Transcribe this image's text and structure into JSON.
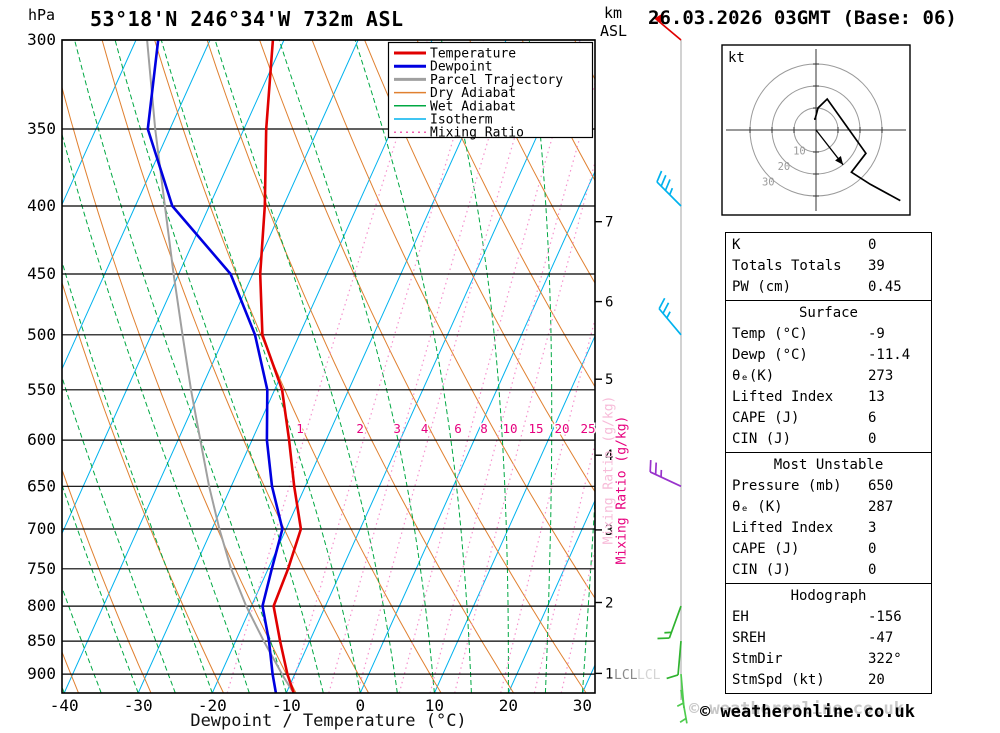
{
  "header": {
    "station_title": "53°18'N 246°34'W 732m ASL",
    "datetime_title": "26.03.2026 03GMT (Base: 06)"
  },
  "axes": {
    "pressure_unit": "hPa",
    "km_unit_line1": "km",
    "km_unit_line2": "ASL",
    "x_axis_title": "Dewpoint / Temperature (°C)",
    "mixing_ratio_axis_label": "Mixing Ratio (g/kg)",
    "lcl_label": "LCL",
    "pressure_ticks": [
      300,
      350,
      400,
      450,
      500,
      550,
      600,
      650,
      700,
      750,
      800,
      850,
      900
    ],
    "temp_ticks": [
      -40,
      -30,
      -20,
      -10,
      0,
      10,
      20,
      30
    ],
    "km_ticks": [
      {
        "km": 7,
        "p": 411
      },
      {
        "km": 6,
        "p": 472
      },
      {
        "km": 5,
        "p": 540
      },
      {
        "km": 4,
        "p": 616
      },
      {
        "km": 3,
        "p": 701
      },
      {
        "km": 2,
        "p": 795
      },
      {
        "km": 1,
        "p": 899
      }
    ]
  },
  "legend": {
    "items": [
      {
        "label": "Temperature",
        "color": "#e00000",
        "width": 3,
        "dash": ""
      },
      {
        "label": "Dewpoint",
        "color": "#0000e0",
        "width": 3,
        "dash": ""
      },
      {
        "label": "Parcel Trajectory",
        "color": "#a0a0a0",
        "width": 3,
        "dash": ""
      },
      {
        "label": "Dry Adiabat",
        "color": "#e08030",
        "width": 1.5,
        "dash": ""
      },
      {
        "label": "Wet Adiabat",
        "color": "#00a843",
        "width": 1.5,
        "dash": ""
      },
      {
        "label": "Isotherm",
        "color": "#00b2ee",
        "width": 1.5,
        "dash": ""
      },
      {
        "label": "Mixing Ratio",
        "color": "#f060b0",
        "width": 1.5,
        "dash": "2 4"
      }
    ]
  },
  "chart_data": {
    "type": "skewt-log-p",
    "pressure_range": [
      300,
      930
    ],
    "temp_at_left_edge": -40.3,
    "temp_at_right_edge": 31.7,
    "skew": 0.45,
    "isotherm_step_c": 10,
    "pressure_lines": [
      300,
      350,
      400,
      450,
      500,
      550,
      600,
      650,
      700,
      750,
      800,
      850,
      900
    ],
    "dry_adiabat_thetas_k": [
      240,
      250,
      260,
      270,
      280,
      290,
      300,
      310,
      320,
      330,
      340,
      350,
      360,
      370,
      380,
      390
    ],
    "wet_adiabat_start_temps_c": [
      -40,
      -35,
      -30,
      -25,
      -20,
      -15,
      -10,
      -5,
      0,
      5,
      10,
      15,
      20,
      25,
      30
    ],
    "mixing_ratio_lines_gkg": [
      1,
      2,
      3,
      4,
      6,
      8,
      10,
      15,
      20,
      25
    ],
    "lcl_pressure": 905,
    "temperature_profile": [
      [
        930,
        -9
      ],
      [
        900,
        -11
      ],
      [
        850,
        -14
      ],
      [
        800,
        -17
      ],
      [
        750,
        -17.3
      ],
      [
        700,
        -18
      ],
      [
        650,
        -21.5
      ],
      [
        600,
        -25
      ],
      [
        550,
        -29
      ],
      [
        500,
        -35
      ],
      [
        450,
        -39
      ],
      [
        400,
        -42.5
      ],
      [
        350,
        -47
      ],
      [
        300,
        -51.5
      ]
    ],
    "dewpoint_profile": [
      [
        930,
        -11.4
      ],
      [
        900,
        -13
      ],
      [
        850,
        -15.5
      ],
      [
        800,
        -18.5
      ],
      [
        750,
        -19.5
      ],
      [
        700,
        -20.5
      ],
      [
        650,
        -24.5
      ],
      [
        600,
        -28
      ],
      [
        550,
        -31
      ],
      [
        500,
        -36
      ],
      [
        450,
        -43
      ],
      [
        400,
        -55
      ],
      [
        350,
        -63
      ],
      [
        300,
        -67
      ]
    ],
    "parcel_profile": [
      [
        930,
        -9
      ],
      [
        905,
        -11.3
      ],
      [
        850,
        -16.2
      ],
      [
        800,
        -20.7
      ],
      [
        750,
        -25
      ],
      [
        700,
        -29
      ],
      [
        650,
        -33
      ],
      [
        600,
        -37
      ],
      [
        550,
        -41.3
      ],
      [
        500,
        -45.8
      ],
      [
        450,
        -50.7
      ],
      [
        400,
        -56
      ],
      [
        350,
        -62
      ],
      [
        300,
        -68.5
      ]
    ],
    "winds": [
      {
        "p": 300,
        "spd": 50,
        "dir": 310,
        "color": "#e00000"
      },
      {
        "p": 400,
        "spd": 35,
        "dir": 315,
        "color": "#00b2ee"
      },
      {
        "p": 500,
        "spd": 25,
        "dir": 320,
        "color": "#00b2ee"
      },
      {
        "p": 650,
        "spd": 25,
        "dir": 295,
        "color": "#9933cc"
      },
      {
        "p": 800,
        "spd": 15,
        "dir": 200,
        "color": "#2fb32f"
      },
      {
        "p": 850,
        "spd": 10,
        "dir": 185,
        "color": "#2fb32f"
      },
      {
        "p": 900,
        "spd": 5,
        "dir": 175,
        "color": "#4ecb4e"
      },
      {
        "p": 925,
        "spd": 5,
        "dir": 170,
        "color": "#4ecb4e"
      }
    ]
  },
  "hodograph": {
    "unit_label": "kt",
    "rings_kt": [
      10,
      20,
      30
    ],
    "trace_uv_kt": [
      [
        -0.9,
        4.9
      ],
      [
        -0.4,
        5.0
      ],
      [
        0.9,
        10.0
      ],
      [
        5.1,
        14.1
      ],
      [
        22.7,
        -10.6
      ],
      [
        16.1,
        -19.2
      ],
      [
        24.7,
        -24.7
      ],
      [
        38.3,
        -32.1
      ]
    ],
    "storm_uv_kt": [
      12.3,
      -15.8
    ],
    "storm_dir_deg": 322,
    "storm_speed_kt": 20
  },
  "stats": {
    "sections": [
      {
        "header": "",
        "rows": [
          [
            "K",
            "0"
          ],
          [
            "Totals Totals",
            "39"
          ],
          [
            "PW (cm)",
            "0.45"
          ]
        ]
      },
      {
        "header": "Surface",
        "rows": [
          [
            "Temp (°C)",
            "-9"
          ],
          [
            "Dewp (°C)",
            "-11.4"
          ],
          [
            "θₑ(K)",
            "273"
          ],
          [
            "Lifted Index",
            "13"
          ],
          [
            "CAPE (J)",
            "6"
          ],
          [
            "CIN (J)",
            "0"
          ]
        ]
      },
      {
        "header": "Most Unstable",
        "rows": [
          [
            "Pressure (mb)",
            "650"
          ],
          [
            "θₑ (K)",
            "287"
          ],
          [
            "Lifted Index",
            "3"
          ],
          [
            "CAPE (J)",
            "0"
          ],
          [
            "CIN (J)",
            "0"
          ]
        ]
      },
      {
        "header": "Hodograph",
        "rows": [
          [
            "EH",
            "-156"
          ],
          [
            "SREH",
            "-47"
          ],
          [
            "StmDir",
            "322°"
          ],
          [
            "StmSpd (kt)",
            "20"
          ]
        ]
      }
    ]
  },
  "watermark": "© weatheronline.co.uk",
  "colors": {
    "temperature": "#e00000",
    "dewpoint": "#0000e0",
    "parcel": "#a0a0a0",
    "dry_adiabat": "#e08030",
    "wet_adiabat": "#00a843",
    "isotherm": "#00b2ee",
    "mixing_line": "#f592cd",
    "mixing_label": "#e6007e",
    "frame": "#000000",
    "wind_staff": "#b4b4b4"
  }
}
